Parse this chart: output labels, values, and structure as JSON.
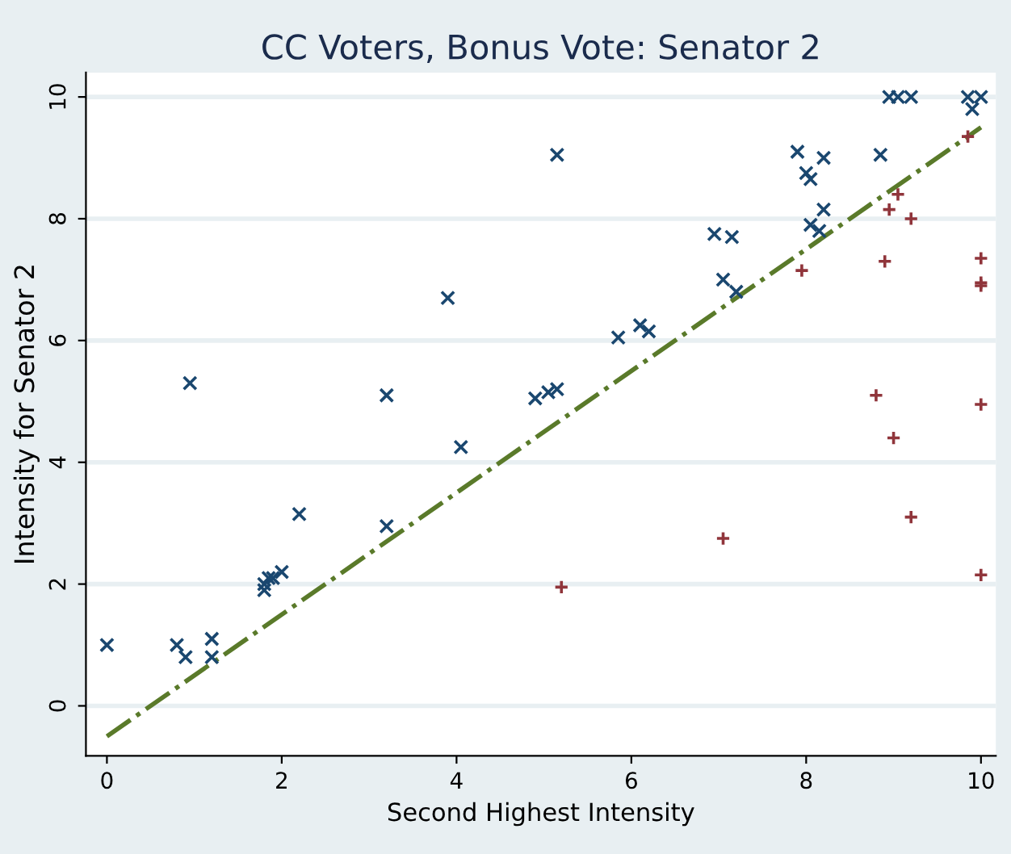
{
  "chart_data": {
    "type": "scatter",
    "title": "CC Voters, Bonus Vote: Senator 2",
    "xlabel": "Second Highest Intensity",
    "ylabel": "Intensity for Senator 2",
    "xlim": [
      -0.24,
      10.17
    ],
    "ylim": [
      -0.82,
      10.4
    ],
    "xticks": [
      0,
      2,
      4,
      6,
      8,
      10
    ],
    "yticks": [
      0,
      2,
      4,
      6,
      8,
      10
    ],
    "grid": "y",
    "legend": false,
    "series": [
      {
        "color": "#1a476f",
        "marker": "x",
        "x": [
          0,
          0.8,
          0.9,
          0.95,
          1.2,
          1.2,
          1.8,
          1.85,
          1.8,
          1.9,
          2.0,
          2.2,
          3.2,
          3.2,
          3.9,
          4.05,
          4.9,
          5.05,
          5.15,
          5.15,
          5.85,
          6.1,
          6.2,
          6.95,
          7.05,
          7.15,
          7.2,
          7.9,
          8.0,
          8.05,
          8.2,
          8.05,
          8.15,
          8.2,
          8.85,
          8.95,
          9.05,
          9.2,
          9.85,
          9.9,
          10
        ],
        "values": [
          1.0,
          1.0,
          0.8,
          5.3,
          1.1,
          0.8,
          2.0,
          2.1,
          1.9,
          2.1,
          2.2,
          3.15,
          5.1,
          2.95,
          6.7,
          4.25,
          5.05,
          5.15,
          5.2,
          9.05,
          6.05,
          6.25,
          6.15,
          7.75,
          7.0,
          7.7,
          6.8,
          9.1,
          8.75,
          8.65,
          9.0,
          7.9,
          7.8,
          8.15,
          9.05,
          10,
          10,
          10,
          10,
          9.8,
          10
        ]
      },
      {
        "color": "#90353b",
        "marker": "cross",
        "x": [
          5.2,
          7.05,
          7.95,
          8.8,
          8.9,
          8.95,
          9.05,
          9.0,
          9.2,
          9.2,
          9.85,
          10,
          10,
          10,
          10,
          10
        ],
        "values": [
          1.95,
          2.75,
          7.15,
          5.1,
          7.3,
          8.15,
          8.4,
          4.4,
          3.1,
          8.0,
          9.35,
          7.35,
          6.95,
          6.9,
          4.95,
          2.15
        ]
      },
      {
        "type": "line",
        "color": "#5a7a2a",
        "line_style": "dashdot",
        "marker": "none",
        "x": [
          0,
          10
        ],
        "values": [
          -0.5,
          9.5
        ]
      }
    ]
  }
}
